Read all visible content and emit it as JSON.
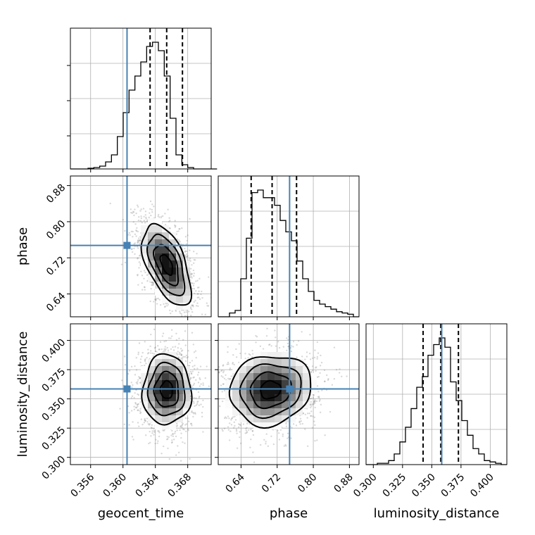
{
  "chart_data": {
    "type": "corner",
    "parameters": [
      {
        "name": "geocent_time",
        "xlabel": "geocent_time",
        "ylabel": "",
        "range": [
          0.3535,
          0.3709
        ],
        "ticks": [
          "0.356",
          "0.360",
          "0.364",
          "0.368"
        ],
        "tick_values": [
          0.356,
          0.36,
          0.364,
          0.368
        ],
        "truth": 0.3605,
        "quantiles": [
          0.36335,
          0.3654,
          0.36735
        ],
        "mean": 0.3654,
        "sd": 0.0015
      },
      {
        "name": "phase",
        "xlabel": "phase",
        "ylabel": "phase",
        "range": [
          0.5895,
          0.9012
        ],
        "ticks": [
          "0.64",
          "0.72",
          "0.80",
          "0.88"
        ],
        "tick_values": [
          0.64,
          0.72,
          0.8,
          0.88
        ],
        "truth": 0.7475,
        "quantiles": [
          0.6624,
          0.7088,
          0.7629
        ],
        "mean": 0.705,
        "sd": 0.045
      },
      {
        "name": "luminosity_distance",
        "xlabel": "luminosity_distance",
        "ylabel": "luminosity_distance",
        "range": [
          0.2938,
          0.4142
        ],
        "ticks": [
          "0.300",
          "0.325",
          "0.350",
          "0.375",
          "0.400"
        ],
        "tick_values": [
          0.3,
          0.325,
          0.35,
          0.375,
          0.4
        ],
        "truth": 0.3585,
        "quantiles": [
          0.3426,
          0.3577,
          0.3728
        ],
        "mean": 0.3577,
        "sd": 0.015
      }
    ],
    "histograms": [
      {
        "param": "geocent_time",
        "bin_start": 0.3535,
        "bin_width": 0.000725,
        "counts": [
          0,
          0,
          0,
          0.5,
          1,
          2,
          5,
          10,
          23,
          40,
          56,
          66,
          76,
          87,
          90,
          84,
          66,
          36,
          10,
          3,
          1,
          0,
          0,
          0,
          0
        ]
      },
      {
        "param": "phase",
        "bin_start": 0.5895,
        "bin_width": 0.01247,
        "counts": [
          0,
          0,
          3,
          5,
          30,
          62,
          98,
          100,
          94,
          94,
          88,
          76,
          67,
          60,
          44,
          30,
          20,
          13,
          10,
          8,
          6,
          4,
          3,
          2,
          0
        ]
      },
      {
        "param": "luminosity_distance",
        "bin_start": 0.2938,
        "bin_width": 0.004816,
        "counts": [
          0,
          0,
          1,
          1,
          3,
          8,
          17,
          28,
          42,
          58,
          66,
          82,
          90,
          95,
          88,
          62,
          48,
          33,
          22,
          12,
          8,
          3,
          2,
          1,
          0
        ]
      }
    ],
    "correlations": {
      "geocent_time|phase": -0.55,
      "geocent_time|luminosity_distance": 0.0,
      "phase|luminosity_distance": 0.1
    },
    "colors": {
      "truth": "#4682b4",
      "lines": "#000000",
      "samples": "#777777"
    },
    "grid": true
  }
}
